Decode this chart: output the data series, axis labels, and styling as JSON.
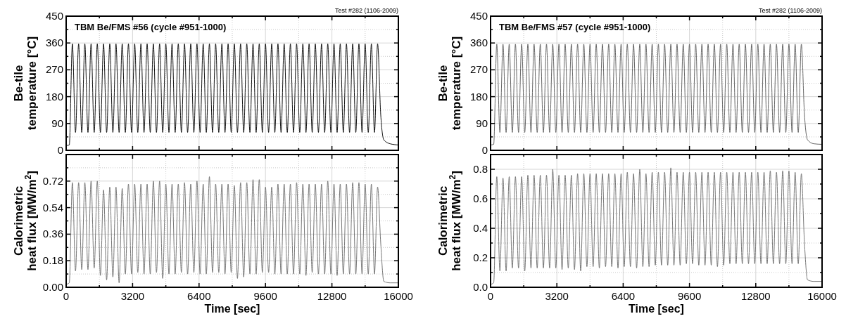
{
  "chart_data": [
    {
      "type": "line",
      "title": "TBM Be/FMS #56 (cycle #951-1000)",
      "annotations": [
        "Test #282 (1106-2009)"
      ],
      "ylabel": "Be-tile temperature [°C]",
      "tick_labels": "y",
      "grid": true,
      "xlim": [
        0,
        16000
      ],
      "xticks": [
        0,
        {
          "value": 1600,
          "label": null
        },
        3200,
        {
          "value": 4800,
          "label": null
        },
        6400,
        {
          "value": 8000,
          "label": null
        },
        9600,
        {
          "value": 11200,
          "label": null
        },
        12800,
        {
          "value": 14400,
          "label": null
        },
        16000
      ],
      "ylim": [
        0,
        450
      ],
      "yticks": [
        0,
        {
          "value": 45,
          "label": null
        },
        90,
        {
          "value": 135,
          "label": null
        },
        180,
        {
          "value": 225,
          "label": null
        },
        270,
        {
          "value": 315,
          "label": null
        },
        360,
        {
          "value": 405,
          "label": null
        },
        450
      ],
      "x": [
        0,
        150,
        300,
        450,
        600,
        750,
        900,
        1050,
        1200,
        1350,
        1500,
        1650,
        1800,
        1950,
        2100,
        2250,
        2400,
        2550,
        2700,
        2850,
        3000,
        3150,
        3300,
        3450,
        3600,
        3750,
        3900,
        4050,
        4200,
        4350,
        4500,
        4650,
        4800,
        4950,
        5100,
        5250,
        5400,
        5550,
        5700,
        5850,
        6000,
        6150,
        6300,
        6450,
        6600,
        6750,
        6900,
        7050,
        7200,
        7350,
        7500,
        7650,
        7800,
        7950,
        8100,
        8250,
        8400,
        8550,
        8700,
        8850,
        9000,
        9150,
        9300,
        9450,
        9600,
        9750,
        9900,
        10050,
        10200,
        10350,
        10500,
        10650,
        10800,
        10950,
        11100,
        11250,
        11400,
        11550,
        11700,
        11850,
        12000,
        12150,
        12300,
        12450,
        12600,
        12750,
        12900,
        13050,
        13200,
        13350,
        13500,
        13650,
        13800,
        13950,
        14100,
        14250,
        14400,
        14550,
        14700,
        14850,
        15000,
        15150,
        15300,
        15600,
        16000
      ],
      "series": [
        {
          "color": "#111111",
          "values": [
            16,
            18,
            357,
            60,
            357,
            60,
            357,
            60,
            357,
            60,
            357,
            60,
            357,
            60,
            357,
            60,
            357,
            60,
            357,
            60,
            357,
            60,
            357,
            60,
            357,
            60,
            357,
            60,
            357,
            60,
            357,
            60,
            357,
            60,
            357,
            60,
            357,
            60,
            357,
            60,
            357,
            60,
            357,
            60,
            357,
            60,
            357,
            60,
            357,
            60,
            357,
            60,
            357,
            60,
            357,
            60,
            357,
            60,
            357,
            60,
            357,
            60,
            357,
            60,
            357,
            60,
            357,
            60,
            357,
            60,
            357,
            60,
            357,
            60,
            357,
            60,
            357,
            60,
            357,
            60,
            357,
            60,
            357,
            60,
            357,
            60,
            357,
            60,
            357,
            60,
            357,
            60,
            357,
            60,
            357,
            60,
            357,
            60,
            357,
            60,
            357,
            120,
            35,
            22,
            18
          ]
        }
      ]
    },
    {
      "type": "line",
      "title": "TBM Be/FMS #57 (cycle #951-1000)",
      "annotations": [
        "Test #282 (1106-2009)"
      ],
      "ylabel": "Be-tile temperature [°C]",
      "tick_labels": "y",
      "grid": true,
      "xlim": [
        0,
        16000
      ],
      "xticks": [
        0,
        {
          "value": 1600,
          "label": null
        },
        3200,
        {
          "value": 4800,
          "label": null
        },
        6400,
        {
          "value": 8000,
          "label": null
        },
        9600,
        {
          "value": 11200,
          "label": null
        },
        12800,
        {
          "value": 14400,
          "label": null
        },
        16000
      ],
      "ylim": [
        0,
        450
      ],
      "yticks": [
        0,
        {
          "value": 45,
          "label": null
        },
        90,
        {
          "value": 135,
          "label": null
        },
        180,
        {
          "value": 225,
          "label": null
        },
        270,
        {
          "value": 315,
          "label": null
        },
        360,
        {
          "value": 405,
          "label": null
        },
        450
      ],
      "x": [
        0,
        150,
        300,
        450,
        600,
        750,
        900,
        1050,
        1200,
        1350,
        1500,
        1650,
        1800,
        1950,
        2100,
        2250,
        2400,
        2550,
        2700,
        2850,
        3000,
        3150,
        3300,
        3450,
        3600,
        3750,
        3900,
        4050,
        4200,
        4350,
        4500,
        4650,
        4800,
        4950,
        5100,
        5250,
        5400,
        5550,
        5700,
        5850,
        6000,
        6150,
        6300,
        6450,
        6600,
        6750,
        6900,
        7050,
        7200,
        7350,
        7500,
        7650,
        7800,
        7950,
        8100,
        8250,
        8400,
        8550,
        8700,
        8850,
        9000,
        9150,
        9300,
        9450,
        9600,
        9750,
        9900,
        10050,
        10200,
        10350,
        10500,
        10650,
        10800,
        10950,
        11100,
        11250,
        11400,
        11550,
        11700,
        11850,
        12000,
        12150,
        12300,
        12450,
        12600,
        12750,
        12900,
        13050,
        13200,
        13350,
        13500,
        13650,
        13800,
        13950,
        14100,
        14250,
        14400,
        14550,
        14700,
        14850,
        15000,
        15150,
        15300,
        15600,
        16000
      ],
      "series": [
        {
          "color": "#666666",
          "values": [
            18,
            20,
            356,
            60,
            356,
            60,
            356,
            60,
            356,
            60,
            356,
            60,
            356,
            60,
            356,
            60,
            356,
            60,
            356,
            60,
            356,
            60,
            356,
            60,
            356,
            60,
            356,
            60,
            356,
            60,
            356,
            60,
            356,
            60,
            356,
            60,
            356,
            60,
            356,
            60,
            356,
            60,
            356,
            60,
            356,
            60,
            356,
            60,
            356,
            60,
            356,
            60,
            356,
            60,
            356,
            60,
            356,
            60,
            356,
            60,
            356,
            60,
            356,
            60,
            356,
            60,
            356,
            60,
            356,
            60,
            356,
            60,
            356,
            60,
            356,
            60,
            356,
            60,
            356,
            60,
            356,
            60,
            356,
            60,
            356,
            60,
            356,
            60,
            356,
            60,
            356,
            60,
            356,
            60,
            356,
            60,
            356,
            60,
            356,
            60,
            356,
            120,
            35,
            22,
            20
          ]
        }
      ]
    },
    {
      "type": "line",
      "xlabel": "Time [sec]",
      "ylabel": "Calorimetric heat flux [MW/m$^{2}$]",
      "grid": true,
      "xlim": [
        0,
        16000
      ],
      "xticks": [
        0,
        {
          "value": 1600,
          "label": null
        },
        3200,
        {
          "value": 4800,
          "label": null
        },
        6400,
        {
          "value": 8000,
          "label": null
        },
        9600,
        {
          "value": 11200,
          "label": null
        },
        12800,
        {
          "value": 14400,
          "label": null
        },
        16000
      ],
      "ylim": [
        0,
        0.9
      ],
      "yticks": [
        {
          "value": 0,
          "label": "0.00"
        },
        {
          "value": 0.09,
          "label": null
        },
        0.18,
        {
          "value": 0.27,
          "label": null
        },
        0.36,
        {
          "value": 0.45,
          "label": null
        },
        0.54,
        {
          "value": 0.63,
          "label": null
        },
        0.72,
        {
          "value": 0.81,
          "label": null
        }
      ],
      "x": [
        0,
        150,
        300,
        450,
        600,
        750,
        900,
        1050,
        1200,
        1350,
        1500,
        1650,
        1800,
        1950,
        2100,
        2250,
        2400,
        2550,
        2700,
        2850,
        3000,
        3150,
        3300,
        3450,
        3600,
        3750,
        3900,
        4050,
        4200,
        4350,
        4500,
        4650,
        4800,
        4950,
        5100,
        5250,
        5400,
        5550,
        5700,
        5850,
        6000,
        6150,
        6300,
        6450,
        6600,
        6750,
        6900,
        7050,
        7200,
        7350,
        7500,
        7650,
        7800,
        7950,
        8100,
        8250,
        8400,
        8550,
        8700,
        8850,
        9000,
        9150,
        9300,
        9450,
        9600,
        9750,
        9900,
        10050,
        10200,
        10350,
        10500,
        10650,
        10800,
        10950,
        11100,
        11250,
        11400,
        11550,
        11700,
        11850,
        12000,
        12150,
        12300,
        12450,
        12600,
        12750,
        12900,
        13050,
        13200,
        13350,
        13500,
        13650,
        13800,
        13950,
        14100,
        14250,
        14400,
        14550,
        14700,
        14850,
        15000,
        15150,
        15300,
        15600,
        16000
      ],
      "series": [
        {
          "color": "#777777",
          "values": [
            0.02,
            0.03,
            0.71,
            0.11,
            0.71,
            0.12,
            0.71,
            0.12,
            0.72,
            0.13,
            0.72,
            0.08,
            0.66,
            0.05,
            0.68,
            0.07,
            0.68,
            0.03,
            0.67,
            0.09,
            0.7,
            0.09,
            0.7,
            0.1,
            0.7,
            0.09,
            0.7,
            0.09,
            0.72,
            0.1,
            0.72,
            0.06,
            0.7,
            0.09,
            0.7,
            0.09,
            0.7,
            0.1,
            0.71,
            0.09,
            0.7,
            0.1,
            0.72,
            0.09,
            0.7,
            0.09,
            0.75,
            0.1,
            0.7,
            0.1,
            0.7,
            0.09,
            0.7,
            0.1,
            0.69,
            0.06,
            0.71,
            0.07,
            0.71,
            0.09,
            0.73,
            0.09,
            0.73,
            0.1,
            0.68,
            0.1,
            0.68,
            0.09,
            0.7,
            0.09,
            0.7,
            0.09,
            0.7,
            0.09,
            0.71,
            0.09,
            0.7,
            0.08,
            0.7,
            0.1,
            0.7,
            0.09,
            0.7,
            0.09,
            0.72,
            0.09,
            0.7,
            0.08,
            0.7,
            0.09,
            0.7,
            0.09,
            0.71,
            0.09,
            0.71,
            0.09,
            0.7,
            0.09,
            0.7,
            0.09,
            0.68,
            0.3,
            0.04,
            0.03,
            0.03
          ]
        }
      ]
    },
    {
      "type": "line",
      "xlabel": "Time [sec]",
      "ylabel": "Calorimetric heat flux [MW/m$^{2}$]",
      "grid": true,
      "xlim": [
        0,
        16000
      ],
      "xticks": [
        0,
        {
          "value": 1600,
          "label": null
        },
        3200,
        {
          "value": 4800,
          "label": null
        },
        6400,
        {
          "value": 8000,
          "label": null
        },
        9600,
        {
          "value": 11200,
          "label": null
        },
        12800,
        {
          "value": 14400,
          "label": null
        },
        16000
      ],
      "ylim": [
        0,
        0.9
      ],
      "yticks": [
        {
          "value": 0,
          "label": "0.0"
        },
        {
          "value": 0.1,
          "label": null
        },
        0.2,
        {
          "value": 0.3,
          "label": null
        },
        0.4,
        {
          "value": 0.5,
          "label": null
        },
        0.6,
        {
          "value": 0.7,
          "label": null
        },
        0.8
      ],
      "x": [
        0,
        150,
        300,
        450,
        600,
        750,
        900,
        1050,
        1200,
        1350,
        1500,
        1650,
        1800,
        1950,
        2100,
        2250,
        2400,
        2550,
        2700,
        2850,
        3000,
        3150,
        3300,
        3450,
        3600,
        3750,
        3900,
        4050,
        4200,
        4350,
        4500,
        4650,
        4800,
        4950,
        5100,
        5250,
        5400,
        5550,
        5700,
        5850,
        6000,
        6150,
        6300,
        6450,
        6600,
        6750,
        6900,
        7050,
        7200,
        7350,
        7500,
        7650,
        7800,
        7950,
        8100,
        8250,
        8400,
        8550,
        8700,
        8850,
        9000,
        9150,
        9300,
        9450,
        9600,
        9750,
        9900,
        10050,
        10200,
        10350,
        10500,
        10650,
        10800,
        10950,
        11100,
        11250,
        11400,
        11550,
        11700,
        11850,
        12000,
        12150,
        12300,
        12450,
        12600,
        12750,
        12900,
        13050,
        13200,
        13350,
        13500,
        13650,
        13800,
        13950,
        14100,
        14250,
        14400,
        14550,
        14700,
        14850,
        15000,
        15150,
        15300,
        15600,
        16000
      ],
      "series": [
        {
          "color": "#777777",
          "values": [
            0.02,
            0.03,
            0.75,
            0.11,
            0.74,
            0.11,
            0.75,
            0.13,
            0.75,
            0.13,
            0.75,
            0.11,
            0.76,
            0.13,
            0.76,
            0.13,
            0.76,
            0.13,
            0.76,
            0.13,
            0.8,
            0.13,
            0.76,
            0.12,
            0.76,
            0.13,
            0.76,
            0.12,
            0.77,
            0.11,
            0.77,
            0.14,
            0.77,
            0.14,
            0.77,
            0.13,
            0.77,
            0.14,
            0.77,
            0.14,
            0.77,
            0.13,
            0.77,
            0.14,
            0.78,
            0.14,
            0.77,
            0.13,
            0.8,
            0.14,
            0.77,
            0.14,
            0.78,
            0.15,
            0.78,
            0.15,
            0.78,
            0.15,
            0.81,
            0.15,
            0.78,
            0.15,
            0.78,
            0.16,
            0.78,
            0.16,
            0.78,
            0.15,
            0.78,
            0.15,
            0.78,
            0.15,
            0.78,
            0.14,
            0.78,
            0.15,
            0.78,
            0.16,
            0.78,
            0.16,
            0.78,
            0.16,
            0.78,
            0.16,
            0.78,
            0.16,
            0.78,
            0.16,
            0.78,
            0.16,
            0.79,
            0.16,
            0.78,
            0.16,
            0.79,
            0.16,
            0.79,
            0.16,
            0.78,
            0.16,
            0.77,
            0.3,
            0.05,
            0.04,
            0.04
          ]
        }
      ]
    }
  ]
}
